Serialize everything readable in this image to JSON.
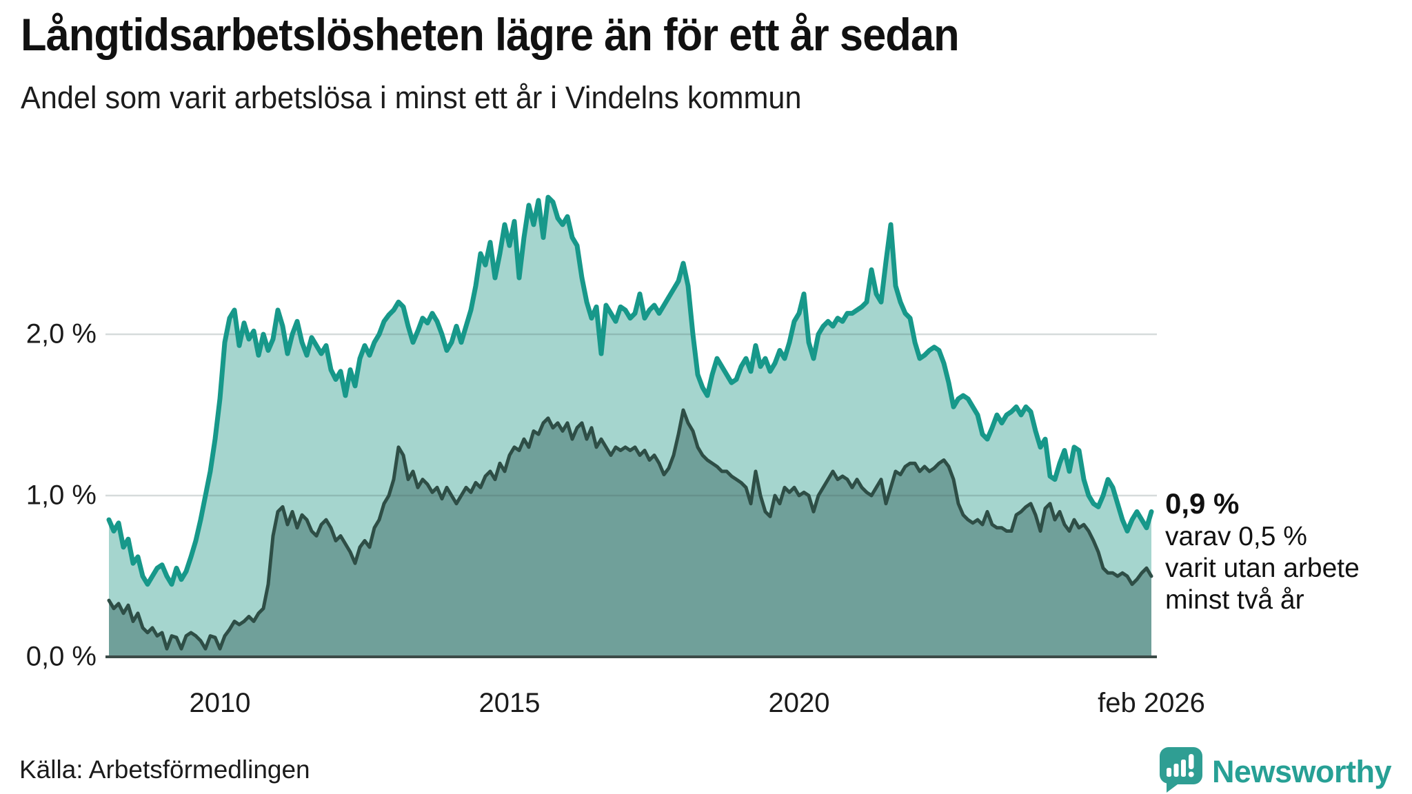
{
  "title": "Långtidsarbetslösheten lägre än för ett år sedan",
  "subtitle": "Andel som varit arbetslösa i minst ett år i Vindelns kommun",
  "source": "Källa: Arbetsförmedlingen",
  "logo": {
    "text": "Newsworthy",
    "color": "#27a095",
    "mark_color": "#2f9e93"
  },
  "annotation": {
    "headline": "0,9 %",
    "lines": [
      "varav 0,5 %",
      "varit utan arbete",
      "minst två år"
    ]
  },
  "chart_data": {
    "type": "area",
    "title": "Långtidsarbetslösheten lägre än för ett år sedan",
    "subtitle": "Andel som varit arbetslösa i minst ett år i Vindelns kommun",
    "source": "Källa: Arbetsförmedlingen",
    "frequency": "monthly",
    "start": "2008-02",
    "end": "2026-02",
    "ylim": [
      0,
      3.0
    ],
    "grid": "horizontal",
    "y_ticks": [
      {
        "label": "0,0 %",
        "value": 0
      },
      {
        "label": "1,0 %",
        "value": 1
      },
      {
        "label": "2,0 %",
        "value": 2
      }
    ],
    "x_ticks": [
      {
        "label": "2010",
        "month_index": 23
      },
      {
        "label": "2015",
        "month_index": 83
      },
      {
        "label": "2020",
        "month_index": 143
      },
      {
        "label": "feb 2026",
        "month_index": 216
      }
    ],
    "series": [
      {
        "name": "Arbetslösa minst ett år",
        "color": "#17988a",
        "fill": "#a5d5ce",
        "stroke_width": 7,
        "last_value_label": "0,9 %",
        "values": [
          0.85,
          0.78,
          0.83,
          0.68,
          0.73,
          0.58,
          0.62,
          0.5,
          0.45,
          0.5,
          0.55,
          0.57,
          0.5,
          0.45,
          0.55,
          0.48,
          0.53,
          0.62,
          0.72,
          0.85,
          1.0,
          1.15,
          1.35,
          1.6,
          1.95,
          2.1,
          2.15,
          1.93,
          2.07,
          1.97,
          2.02,
          1.87,
          2.0,
          1.9,
          1.97,
          2.15,
          2.05,
          1.88,
          2.0,
          2.08,
          1.95,
          1.87,
          1.98,
          1.93,
          1.88,
          1.93,
          1.78,
          1.72,
          1.77,
          1.62,
          1.78,
          1.68,
          1.85,
          1.93,
          1.87,
          1.95,
          2.0,
          2.08,
          2.12,
          2.15,
          2.2,
          2.17,
          2.05,
          1.95,
          2.02,
          2.1,
          2.07,
          2.13,
          2.08,
          2.0,
          1.9,
          1.95,
          2.05,
          1.95,
          2.05,
          2.15,
          2.3,
          2.5,
          2.43,
          2.57,
          2.35,
          2.5,
          2.68,
          2.55,
          2.7,
          2.35,
          2.6,
          2.8,
          2.68,
          2.83,
          2.6,
          2.85,
          2.82,
          2.72,
          2.68,
          2.73,
          2.6,
          2.55,
          2.35,
          2.2,
          2.1,
          2.17,
          1.88,
          2.18,
          2.13,
          2.08,
          2.17,
          2.15,
          2.1,
          2.13,
          2.25,
          2.1,
          2.15,
          2.18,
          2.13,
          2.18,
          2.23,
          2.28,
          2.33,
          2.44,
          2.3,
          2.0,
          1.75,
          1.67,
          1.62,
          1.75,
          1.85,
          1.8,
          1.75,
          1.7,
          1.72,
          1.8,
          1.85,
          1.77,
          1.93,
          1.8,
          1.85,
          1.77,
          1.82,
          1.9,
          1.85,
          1.95,
          2.08,
          2.13,
          2.25,
          1.95,
          1.85,
          2.0,
          2.05,
          2.08,
          2.05,
          2.1,
          2.08,
          2.13,
          2.13,
          2.15,
          2.17,
          2.2,
          2.4,
          2.25,
          2.2,
          2.45,
          2.68,
          2.3,
          2.2,
          2.13,
          2.1,
          1.95,
          1.85,
          1.87,
          1.9,
          1.92,
          1.9,
          1.82,
          1.7,
          1.55,
          1.6,
          1.62,
          1.6,
          1.55,
          1.5,
          1.38,
          1.35,
          1.42,
          1.5,
          1.45,
          1.5,
          1.52,
          1.55,
          1.5,
          1.55,
          1.52,
          1.4,
          1.3,
          1.35,
          1.12,
          1.1,
          1.2,
          1.28,
          1.15,
          1.3,
          1.28,
          1.1,
          1.0,
          0.95,
          0.93,
          1.0,
          1.1,
          1.05,
          0.95,
          0.85,
          0.78,
          0.85,
          0.9,
          0.85,
          0.8,
          0.9
        ]
      },
      {
        "name": "Arbetslösa minst två år",
        "color": "#2e4e46",
        "fill": "#70a09a",
        "stroke_width": 5,
        "last_value_label": "0,5 %",
        "values": [
          0.35,
          0.3,
          0.33,
          0.27,
          0.32,
          0.22,
          0.27,
          0.18,
          0.15,
          0.18,
          0.13,
          0.15,
          0.05,
          0.13,
          0.12,
          0.05,
          0.13,
          0.15,
          0.13,
          0.1,
          0.05,
          0.13,
          0.12,
          0.05,
          0.13,
          0.17,
          0.22,
          0.2,
          0.22,
          0.25,
          0.22,
          0.27,
          0.3,
          0.45,
          0.75,
          0.9,
          0.93,
          0.82,
          0.9,
          0.8,
          0.88,
          0.85,
          0.78,
          0.75,
          0.82,
          0.85,
          0.8,
          0.72,
          0.75,
          0.7,
          0.65,
          0.58,
          0.68,
          0.72,
          0.68,
          0.8,
          0.85,
          0.95,
          1.0,
          1.1,
          1.3,
          1.25,
          1.1,
          1.15,
          1.05,
          1.1,
          1.07,
          1.02,
          1.05,
          0.98,
          1.05,
          1.0,
          0.95,
          1.0,
          1.05,
          1.02,
          1.08,
          1.05,
          1.12,
          1.15,
          1.1,
          1.2,
          1.15,
          1.25,
          1.3,
          1.28,
          1.35,
          1.3,
          1.4,
          1.38,
          1.45,
          1.48,
          1.42,
          1.45,
          1.4,
          1.45,
          1.35,
          1.42,
          1.45,
          1.35,
          1.42,
          1.3,
          1.35,
          1.3,
          1.25,
          1.3,
          1.28,
          1.3,
          1.28,
          1.3,
          1.25,
          1.28,
          1.22,
          1.25,
          1.2,
          1.13,
          1.17,
          1.25,
          1.38,
          1.53,
          1.45,
          1.4,
          1.3,
          1.25,
          1.22,
          1.2,
          1.18,
          1.15,
          1.15,
          1.12,
          1.1,
          1.08,
          1.05,
          0.95,
          1.15,
          1.0,
          0.9,
          0.87,
          1.0,
          0.95,
          1.05,
          1.02,
          1.05,
          1.0,
          1.02,
          1.0,
          0.9,
          1.0,
          1.05,
          1.1,
          1.15,
          1.1,
          1.12,
          1.1,
          1.05,
          1.1,
          1.05,
          1.02,
          1.0,
          1.05,
          1.1,
          0.95,
          1.05,
          1.15,
          1.13,
          1.18,
          1.2,
          1.2,
          1.15,
          1.18,
          1.15,
          1.17,
          1.2,
          1.22,
          1.18,
          1.1,
          0.95,
          0.88,
          0.85,
          0.83,
          0.85,
          0.82,
          0.9,
          0.82,
          0.8,
          0.8,
          0.78,
          0.78,
          0.88,
          0.9,
          0.93,
          0.95,
          0.88,
          0.78,
          0.92,
          0.95,
          0.85,
          0.9,
          0.82,
          0.78,
          0.85,
          0.8,
          0.82,
          0.78,
          0.72,
          0.65,
          0.55,
          0.52,
          0.52,
          0.5,
          0.52,
          0.5,
          0.45,
          0.48,
          0.52,
          0.55,
          0.5
        ]
      }
    ]
  }
}
